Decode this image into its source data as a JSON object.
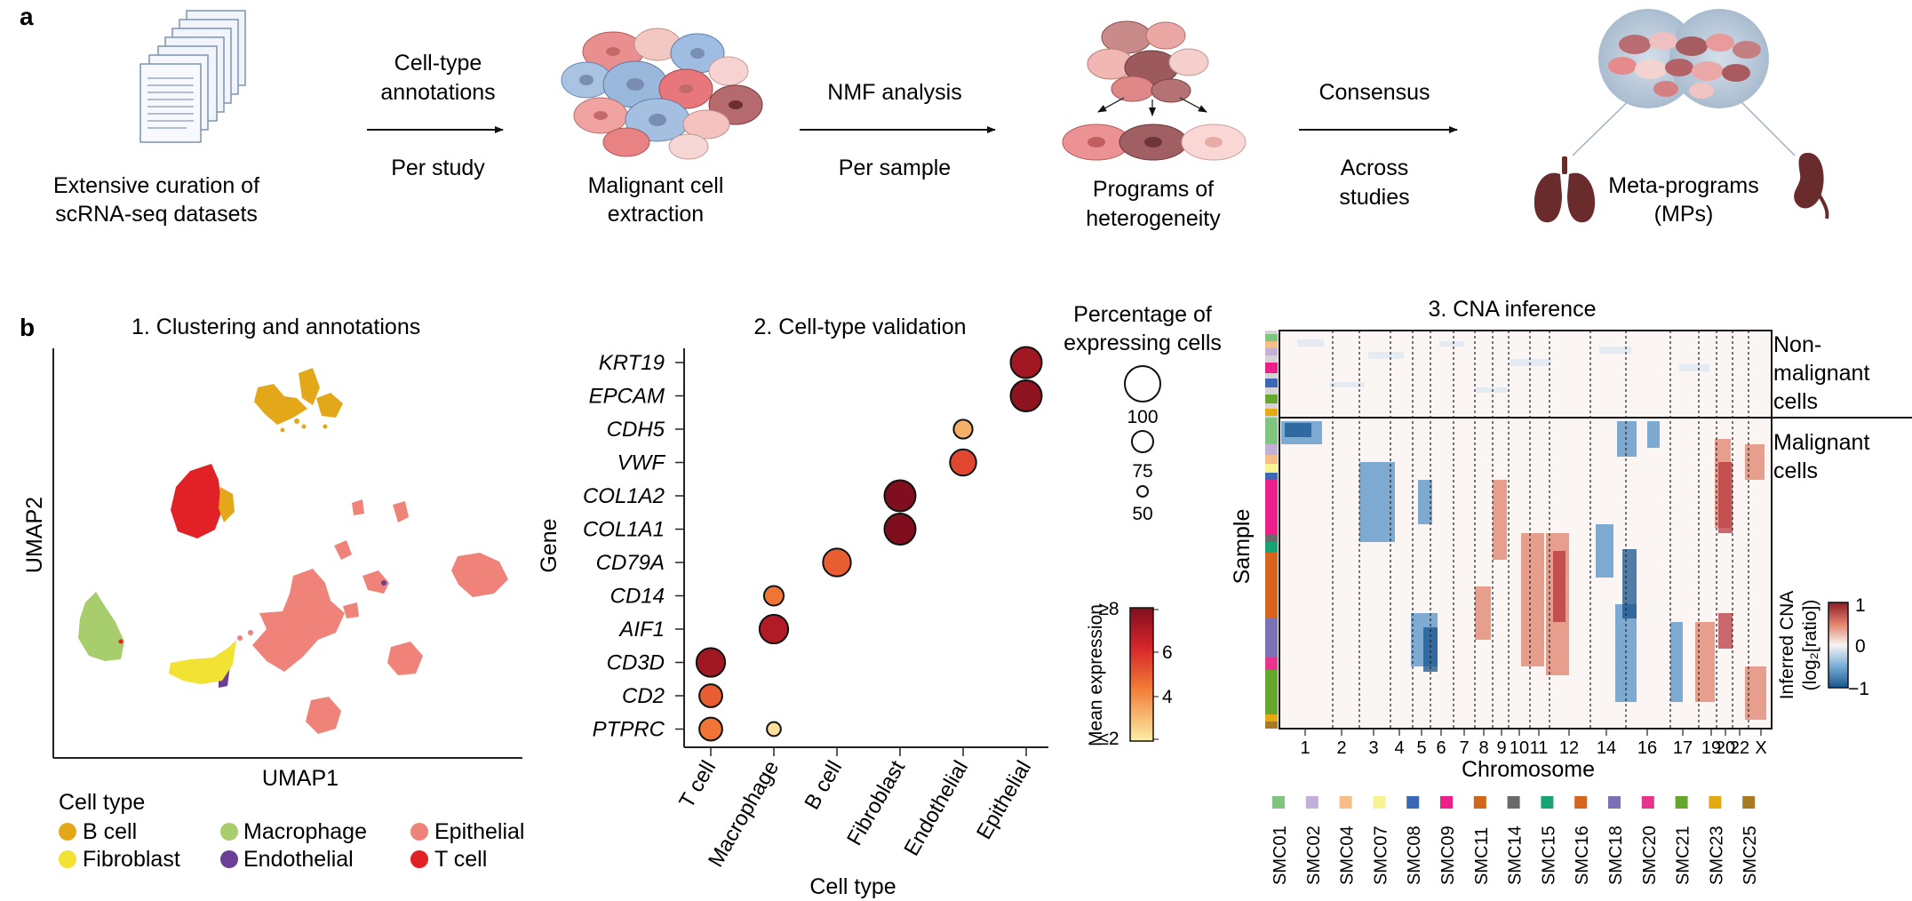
{
  "panel_a": {
    "label": "a",
    "step1_caption": [
      "Extensive curation of",
      "scRNA-seq datasets"
    ],
    "arrow1_above": [
      "Cell-type",
      "annotations"
    ],
    "arrow1_below": "Per study",
    "step2_caption": [
      "Malignant cell",
      "extraction"
    ],
    "arrow2_above": "NMF analysis",
    "arrow2_below": "Per sample",
    "step3_caption": [
      "Programs of",
      "heterogeneity"
    ],
    "arrow3_above": "Consensus",
    "arrow3_below": [
      "Across",
      "studies"
    ],
    "step4_caption": [
      "Meta-programs",
      "(MPs)"
    ]
  },
  "panel_b": {
    "label": "b",
    "umap": {
      "title": "1.  Clustering and annotations",
      "xlabel": "UMAP1",
      "ylabel": "UMAP2",
      "legend_title": "Cell type",
      "legend": [
        {
          "name": "B cell",
          "color": "#e3a81a"
        },
        {
          "name": "Macrophage",
          "color": "#a7cd6d"
        },
        {
          "name": "Epithelial",
          "color": "#ef8379"
        },
        {
          "name": "Fibroblast",
          "color": "#f1e234"
        },
        {
          "name": "Endothelial",
          "color": "#6b3f96"
        },
        {
          "name": "T cell",
          "color": "#e22126"
        }
      ]
    },
    "dotplot": {
      "title": "2. Cell-type validation",
      "ylabel": "Gene",
      "xlabel": "Cell type",
      "size_legend_title": [
        "Percentage of",
        "expressing cells"
      ],
      "size_legend": [
        100,
        75,
        50
      ],
      "color_legend_title": "Mean expression",
      "color_ticks": [
        "≥8",
        "6",
        "4",
        "≤2"
      ]
    },
    "cna": {
      "title": "3. CNA inference",
      "ylabel": "Sample",
      "xlabel": "Chromosome",
      "label_nonmalignant": [
        "Non-",
        "malignant",
        "cells"
      ],
      "label_malignant": [
        "Malignant",
        "cells"
      ],
      "colorbar_title": [
        "Inferred CNA",
        "(log₂[ratio])"
      ],
      "colorbar_ticks": [
        "1",
        "0",
        "−1"
      ],
      "chromosomes": [
        "1",
        "2",
        "3",
        "4",
        "5",
        "6",
        "7",
        "8",
        "9",
        "10",
        "11",
        "12",
        "14",
        "16",
        "17",
        "19",
        "20",
        "22",
        "X"
      ],
      "samples": [
        {
          "name": "SMC01",
          "color": "#7fc57f"
        },
        {
          "name": "SMC02",
          "color": "#c3b0d8"
        },
        {
          "name": "SMC04",
          "color": "#f7bd86"
        },
        {
          "name": "SMC07",
          "color": "#f8f293"
        },
        {
          "name": "SMC08",
          "color": "#3b68b5"
        },
        {
          "name": "SMC09",
          "color": "#ec1f8b"
        },
        {
          "name": "SMC11",
          "color": "#d1661b"
        },
        {
          "name": "SMC14",
          "color": "#6a6a6a"
        },
        {
          "name": "SMC15",
          "color": "#17a374"
        },
        {
          "name": "SMC16",
          "color": "#d9641b"
        },
        {
          "name": "SMC18",
          "color": "#7c70b6"
        },
        {
          "name": "SMC20",
          "color": "#e7348d"
        },
        {
          "name": "SMC21",
          "color": "#66a82e"
        },
        {
          "name": "SMC23",
          "color": "#e6aa11"
        },
        {
          "name": "SMC25",
          "color": "#a77a25"
        }
      ]
    }
  },
  "chart_data": {
    "type": "scatter",
    "title": "2. Cell-type validation",
    "xlabel": "Cell type",
    "ylabel": "Gene",
    "categories_x": [
      "T cell",
      "Macrophage",
      "B cell",
      "Fibroblast",
      "Endothelial",
      "Epithelial"
    ],
    "categories_y": [
      "KRT19",
      "EPCAM",
      "CDH5",
      "VWF",
      "COL1A2",
      "COL1A1",
      "CD79A",
      "CD14",
      "AIF1",
      "CD3D",
      "CD2",
      "PTPRC"
    ],
    "points": [
      {
        "gene": "KRT19",
        "cell_type": "Epithelial",
        "pct_expressing": 100,
        "mean_expression": 7.3
      },
      {
        "gene": "EPCAM",
        "cell_type": "Epithelial",
        "pct_expressing": 100,
        "mean_expression": 7.7
      },
      {
        "gene": "CDH5",
        "cell_type": "Endothelial",
        "pct_expressing": 70,
        "mean_expression": 3.3
      },
      {
        "gene": "VWF",
        "cell_type": "Endothelial",
        "pct_expressing": 88,
        "mean_expression": 5.5
      },
      {
        "gene": "COL1A2",
        "cell_type": "Fibroblast",
        "pct_expressing": 100,
        "mean_expression": 8.0
      },
      {
        "gene": "COL1A1",
        "cell_type": "Fibroblast",
        "pct_expressing": 100,
        "mean_expression": 8.0
      },
      {
        "gene": "CD79A",
        "cell_type": "B cell",
        "pct_expressing": 92,
        "mean_expression": 5.0
      },
      {
        "gene": "CD14",
        "cell_type": "Macrophage",
        "pct_expressing": 72,
        "mean_expression": 4.5
      },
      {
        "gene": "AIF1",
        "cell_type": "Macrophage",
        "pct_expressing": 94,
        "mean_expression": 7.0
      },
      {
        "gene": "CD3D",
        "cell_type": "T cell",
        "pct_expressing": 94,
        "mean_expression": 7.3
      },
      {
        "gene": "CD2",
        "cell_type": "T cell",
        "pct_expressing": 80,
        "mean_expression": 5.0
      },
      {
        "gene": "PTPRC",
        "cell_type": "T cell",
        "pct_expressing": 80,
        "mean_expression": 4.5
      },
      {
        "gene": "PTPRC",
        "cell_type": "Macrophage",
        "pct_expressing": 58,
        "mean_expression": 2.3
      }
    ],
    "color_range": [
      2,
      8
    ],
    "size_range": [
      50,
      100
    ]
  }
}
